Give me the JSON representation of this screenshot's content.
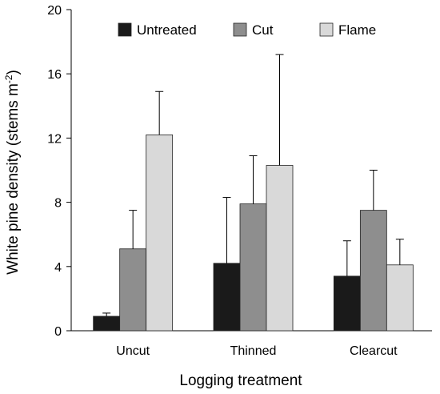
{
  "chart_data": {
    "type": "bar",
    "xlabel": "Logging treatment",
    "ylabel": "White pine density (stems m",
    "ylabel_sup": "-2",
    "ylabel_close": ")",
    "ylim": [
      0,
      20
    ],
    "yticks": [
      "0",
      "4",
      "8",
      "12",
      "16",
      "20"
    ],
    "categories": [
      "Uncut",
      "Thinned",
      "Clearcut"
    ],
    "legend_position": "top",
    "series": [
      {
        "name": "Untreated",
        "color": "#1a1a1a",
        "values": [
          0.9,
          4.2,
          3.4
        ],
        "error": [
          0.2,
          4.1,
          2.2
        ]
      },
      {
        "name": "Cut",
        "color": "#8e8e8e",
        "values": [
          5.1,
          7.9,
          7.5
        ],
        "error": [
          2.4,
          3.0,
          2.5
        ]
      },
      {
        "name": "Flame",
        "color": "#d9d9d9",
        "values": [
          12.2,
          10.3,
          4.1
        ],
        "error": [
          2.7,
          6.9,
          1.6
        ]
      }
    ]
  }
}
